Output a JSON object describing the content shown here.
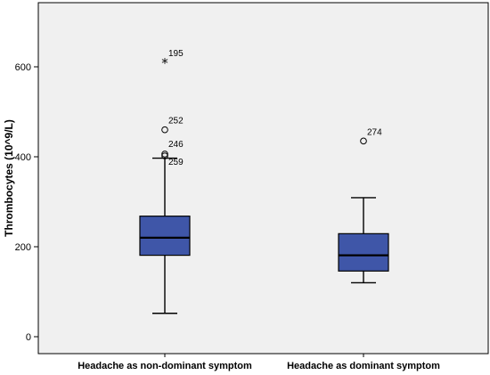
{
  "chart_data": {
    "type": "boxplot",
    "ylabel": "Thrombocytes (10^9/L)",
    "ylim": [
      -10,
      705
    ],
    "yticks": [
      0,
      200,
      400,
      600
    ],
    "grid": false,
    "colors": {
      "box_fill": "#3f56a8",
      "plot_bg": "#f0f0f0",
      "median": "#000000"
    },
    "categories": [
      "Headache as non-dominant symptom",
      "Headache as dominant symptom"
    ],
    "boxes": [
      {
        "category": "Headache as non-dominant symptom",
        "whisker_low": 52,
        "q1": 181,
        "median": 220,
        "q3": 268,
        "whisker_high": 397,
        "outliers": [
          {
            "id": "195",
            "value": 610,
            "marker": "star"
          },
          {
            "id": "252",
            "value": 460,
            "marker": "circle"
          },
          {
            "id": "246",
            "value": 406,
            "marker": "circle"
          },
          {
            "id": "259",
            "value": 402,
            "marker": "circle"
          }
        ]
      },
      {
        "category": "Headache as dominant symptom",
        "whisker_low": 120,
        "q1": 146,
        "median": 181,
        "q3": 229,
        "whisker_high": 309,
        "outliers": [
          {
            "id": "274",
            "value": 435,
            "marker": "circle"
          }
        ]
      }
    ]
  }
}
